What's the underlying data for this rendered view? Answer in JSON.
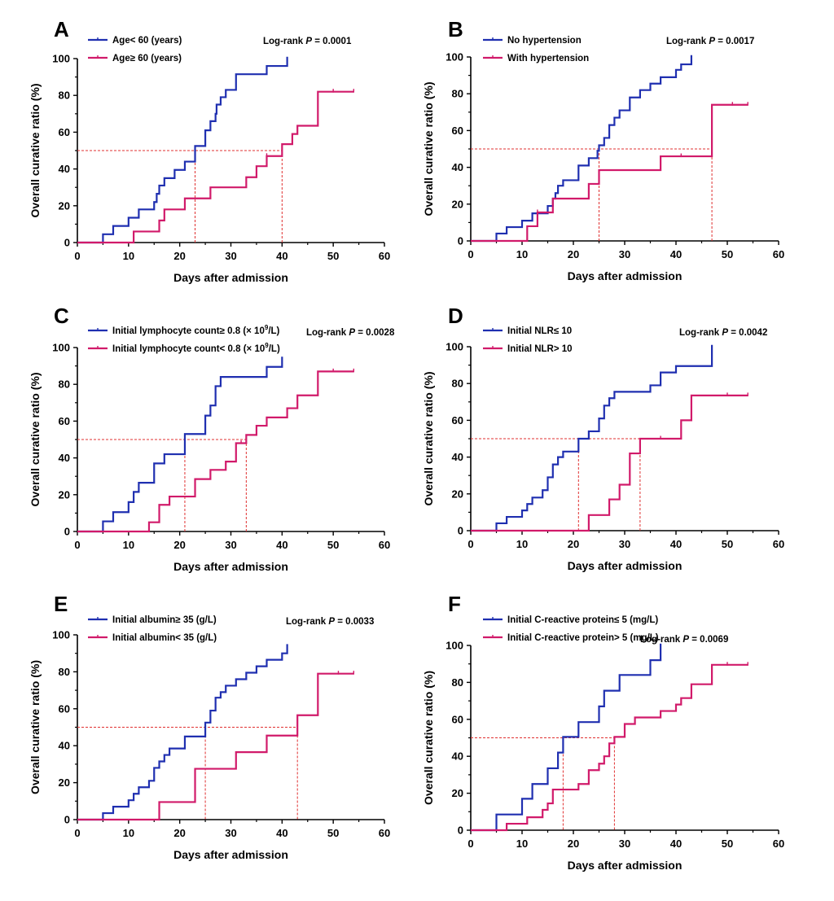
{
  "colors": {
    "group1": "#1f2fb0",
    "group2": "#d11a6a",
    "median": "#e03030",
    "axis": "#000000"
  },
  "chart_data": [
    {
      "panel": "A",
      "type": "line",
      "subtype": "kaplan-meier-step",
      "xlabel": "Days after admission",
      "ylabel": "Overall curative ratio (%)",
      "xlim": [
        0,
        60
      ],
      "ylim": [
        0,
        100
      ],
      "xticks": [
        0,
        10,
        20,
        30,
        40,
        50,
        60
      ],
      "yticks": [
        0,
        20,
        40,
        60,
        80,
        100
      ],
      "pvalue_prefix": "Log-rank ",
      "pvalue_symbol": "P",
      "pvalue_suffix": " = 0.0001",
      "medians": [
        23,
        40
      ],
      "series": [
        {
          "name": "Age< 60 (years)",
          "color": "group1",
          "steps": [
            [
              5,
              4.5
            ],
            [
              7,
              9
            ],
            [
              10,
              13.5
            ],
            [
              12,
              18
            ],
            [
              15,
              22
            ],
            [
              15.5,
              26.5
            ],
            [
              16,
              31
            ],
            [
              17,
              35
            ],
            [
              19,
              39.5
            ],
            [
              21,
              44
            ],
            [
              23,
              52.5
            ],
            [
              25,
              61
            ],
            [
              26,
              66
            ],
            [
              27,
              70
            ],
            [
              27.2,
              75
            ],
            [
              28,
              79
            ],
            [
              29,
              83
            ],
            [
              31,
              91.5
            ],
            [
              37,
              96
            ],
            [
              41,
              101
            ]
          ],
          "end": 41,
          "censors": []
        },
        {
          "name": "Age≥ 60 (years)",
          "color": "group2",
          "steps": [
            [
              11,
              6
            ],
            [
              16,
              12
            ],
            [
              17,
              18
            ],
            [
              21,
              24
            ],
            [
              26,
              30
            ],
            [
              33,
              35.5
            ],
            [
              35,
              41.5
            ],
            [
              37,
              47
            ],
            [
              40,
              53.5
            ],
            [
              42,
              59
            ],
            [
              43,
              63.5
            ],
            [
              47,
              82
            ]
          ],
          "end": 54,
          "censors": [
            37,
            50,
            54
          ]
        }
      ]
    },
    {
      "panel": "B",
      "type": "line",
      "subtype": "kaplan-meier-step",
      "xlabel": "Days after admission",
      "ylabel": "Overall curative ratio (%)",
      "xlim": [
        0,
        60
      ],
      "ylim": [
        0,
        100
      ],
      "xticks": [
        0,
        10,
        20,
        30,
        40,
        50,
        60
      ],
      "yticks": [
        0,
        20,
        40,
        60,
        80,
        100
      ],
      "pvalue_prefix": "Log-rank ",
      "pvalue_symbol": "P",
      "pvalue_suffix": " = 0.0017",
      "medians": [
        25,
        47
      ],
      "series": [
        {
          "name": "No hypertension",
          "color": "group1",
          "steps": [
            [
              5,
              4
            ],
            [
              7,
              7.5
            ],
            [
              10,
              11
            ],
            [
              12,
              15
            ],
            [
              15,
              19
            ],
            [
              16,
              23
            ],
            [
              16.5,
              26
            ],
            [
              17,
              30
            ],
            [
              18,
              33
            ],
            [
              21,
              41
            ],
            [
              23,
              45
            ],
            [
              24.7,
              49
            ],
            [
              25,
              52
            ],
            [
              26,
              56
            ],
            [
              27,
              63
            ],
            [
              28,
              67
            ],
            [
              29,
              71
            ],
            [
              31,
              78
            ],
            [
              33,
              82
            ],
            [
              35,
              85.5
            ],
            [
              37,
              89
            ],
            [
              40,
              93
            ],
            [
              41,
              96
            ],
            [
              43,
              101
            ]
          ],
          "end": 43,
          "censors": []
        },
        {
          "name": "With hypertension",
          "color": "group2",
          "steps": [
            [
              11,
              8
            ],
            [
              13,
              15.5
            ],
            [
              16,
              23
            ],
            [
              23,
              31
            ],
            [
              25,
              38.5
            ],
            [
              37,
              46
            ],
            [
              47,
              74
            ]
          ],
          "end": 54,
          "censors": [
            13,
            41,
            51,
            54
          ]
        }
      ]
    },
    {
      "panel": "C",
      "type": "line",
      "subtype": "kaplan-meier-step",
      "xlabel": "Days after admission",
      "ylabel": "Overall curative ratio (%)",
      "xlim": [
        0,
        60
      ],
      "ylim": [
        0,
        100
      ],
      "xticks": [
        0,
        10,
        20,
        30,
        40,
        50,
        60
      ],
      "yticks": [
        0,
        20,
        40,
        60,
        80,
        100
      ],
      "pvalue_prefix": "Log-rank ",
      "pvalue_symbol": "P",
      "pvalue_suffix": " = 0.0028",
      "medians": [
        21,
        33
      ],
      "series": [
        {
          "name_prefix": "Initial lymphocyte count≥ 0.8 (× 10",
          "name_sup": "9",
          "name_suffix": "/L)",
          "color": "group1",
          "steps": [
            [
              5,
              5.5
            ],
            [
              7,
              10.5
            ],
            [
              10,
              16
            ],
            [
              11,
              21.5
            ],
            [
              12,
              26.5
            ],
            [
              15,
              37
            ],
            [
              17,
              42
            ],
            [
              21,
              53
            ],
            [
              25,
              63
            ],
            [
              26,
              68.5
            ],
            [
              27,
              79
            ],
            [
              28,
              84
            ],
            [
              37,
              89.5
            ],
            [
              40,
              95
            ]
          ],
          "end": 40,
          "censors": []
        },
        {
          "name_prefix": "Initial lymphocyte count< 0.8 (× 10",
          "name_sup": "9",
          "name_suffix": "/L)",
          "color": "group2",
          "steps": [
            [
              14,
              5
            ],
            [
              16,
              14.5
            ],
            [
              18,
              19
            ],
            [
              23,
              28.5
            ],
            [
              26,
              33.5
            ],
            [
              29,
              38
            ],
            [
              31,
              48
            ],
            [
              33,
              52.5
            ],
            [
              35,
              57.5
            ],
            [
              37,
              62
            ],
            [
              41,
              67
            ],
            [
              43,
              74
            ],
            [
              47,
              87
            ]
          ],
          "end": 54,
          "censors": [
            32,
            50,
            54
          ]
        }
      ]
    },
    {
      "panel": "D",
      "type": "line",
      "subtype": "kaplan-meier-step",
      "xlabel": "Days after admission",
      "ylabel": "Overall curative ratio (%)",
      "xlim": [
        0,
        60
      ],
      "ylim": [
        0,
        100
      ],
      "xticks": [
        0,
        10,
        20,
        30,
        40,
        50,
        60
      ],
      "yticks": [
        0,
        20,
        40,
        60,
        80,
        100
      ],
      "pvalue_prefix": "Log-rank ",
      "pvalue_symbol": "P",
      "pvalue_suffix": " = 0.0042",
      "medians": [
        21,
        33
      ],
      "series": [
        {
          "name": "Initial NLR≤ 10",
          "color": "group1",
          "steps": [
            [
              5,
              4
            ],
            [
              7,
              7.5
            ],
            [
              10,
              11
            ],
            [
              11,
              14.5
            ],
            [
              12,
              18
            ],
            [
              14,
              22
            ],
            [
              15,
              29
            ],
            [
              16,
              36
            ],
            [
              17,
              40
            ],
            [
              18,
              43
            ],
            [
              21,
              50
            ],
            [
              23,
              54
            ],
            [
              25,
              61
            ],
            [
              26,
              68
            ],
            [
              27,
              72
            ],
            [
              28,
              75.5
            ],
            [
              35,
              79
            ],
            [
              37,
              86
            ],
            [
              40,
              89.5
            ],
            [
              47,
              101
            ]
          ],
          "end": 47,
          "censors": []
        },
        {
          "name": "Initial NLR> 10",
          "color": "group2",
          "steps": [
            [
              23,
              8.5
            ],
            [
              27,
              17
            ],
            [
              29,
              25
            ],
            [
              31,
              42
            ],
            [
              33,
              50
            ],
            [
              41,
              60
            ],
            [
              43,
              73.5
            ]
          ],
          "end": 54,
          "censors": [
            37,
            50,
            54
          ]
        }
      ]
    },
    {
      "panel": "E",
      "type": "line",
      "subtype": "kaplan-meier-step",
      "xlabel": "Days after admission",
      "ylabel": "Overall curative ratio (%)",
      "xlim": [
        0,
        60
      ],
      "ylim": [
        0,
        100
      ],
      "xticks": [
        0,
        10,
        20,
        30,
        40,
        50,
        60
      ],
      "yticks": [
        0,
        20,
        40,
        60,
        80,
        100
      ],
      "pvalue_prefix": "Log-rank ",
      "pvalue_symbol": "P",
      "pvalue_suffix": " = 0.0033",
      "medians": [
        25,
        43
      ],
      "series": [
        {
          "name": "Initial albumin≥ 35 (g/L)",
          "color": "group1",
          "steps": [
            [
              5,
              3.5
            ],
            [
              7,
              7
            ],
            [
              10,
              10.5
            ],
            [
              11,
              14
            ],
            [
              12,
              17.5
            ],
            [
              14,
              21
            ],
            [
              15,
              28
            ],
            [
              16,
              31.5
            ],
            [
              17,
              35
            ],
            [
              18,
              38.5
            ],
            [
              21,
              45
            ],
            [
              25,
              52.5
            ],
            [
              26,
              59
            ],
            [
              27,
              66
            ],
            [
              28,
              69
            ],
            [
              29,
              72.5
            ],
            [
              31,
              76
            ],
            [
              33,
              79.5
            ],
            [
              35,
              83
            ],
            [
              37,
              86.5
            ],
            [
              40,
              90
            ],
            [
              41,
              95
            ]
          ],
          "end": 41,
          "censors": []
        },
        {
          "name": "Initial albumin< 35 (g/L)",
          "color": "group2",
          "steps": [
            [
              16,
              9.5
            ],
            [
              23,
              27.5
            ],
            [
              31,
              36.5
            ],
            [
              37,
              45.5
            ],
            [
              43,
              56.5
            ],
            [
              47,
              79
            ]
          ],
          "end": 54,
          "censors": [
            51,
            54
          ]
        }
      ]
    },
    {
      "panel": "F",
      "type": "line",
      "subtype": "kaplan-meier-step",
      "xlabel": "Days after admission",
      "ylabel": "Overall curative ratio (%)",
      "xlim": [
        0,
        60
      ],
      "ylim": [
        0,
        100
      ],
      "xticks": [
        0,
        10,
        20,
        30,
        40,
        50,
        60
      ],
      "yticks": [
        0,
        20,
        40,
        60,
        80,
        100
      ],
      "pvalue_prefix": "Log-rank ",
      "pvalue_symbol": "P",
      "pvalue_suffix": " = 0.0069",
      "medians": [
        18,
        28
      ],
      "series": [
        {
          "name": "Initial C-reactive protein≤ 5 (mg/L)",
          "color": "group1",
          "steps": [
            [
              5,
              8.5
            ],
            [
              10,
              17
            ],
            [
              12,
              25
            ],
            [
              15,
              33.5
            ],
            [
              17,
              42
            ],
            [
              18,
              50.5
            ],
            [
              21,
              58.5
            ],
            [
              25,
              67
            ],
            [
              26,
              75.5
            ],
            [
              29,
              84
            ],
            [
              35,
              92
            ],
            [
              37,
              101
            ]
          ],
          "end": 37,
          "censors": []
        },
        {
          "name": "Initial C-reactive protein> 5 (mg/L)",
          "color": "group2",
          "steps": [
            [
              7,
              3.5
            ],
            [
              11,
              7
            ],
            [
              14,
              11
            ],
            [
              15,
              14.5
            ],
            [
              16,
              22
            ],
            [
              21,
              25
            ],
            [
              23,
              32.5
            ],
            [
              25,
              36
            ],
            [
              26,
              40
            ],
            [
              27,
              47
            ],
            [
              28,
              50.5
            ],
            [
              30,
              57.5
            ],
            [
              32,
              61
            ],
            [
              37,
              64.5
            ],
            [
              40,
              68
            ],
            [
              41,
              71.5
            ],
            [
              43,
              79
            ],
            [
              47,
              89.5
            ]
          ],
          "end": 54,
          "censors": [
            50,
            54
          ]
        }
      ]
    }
  ]
}
